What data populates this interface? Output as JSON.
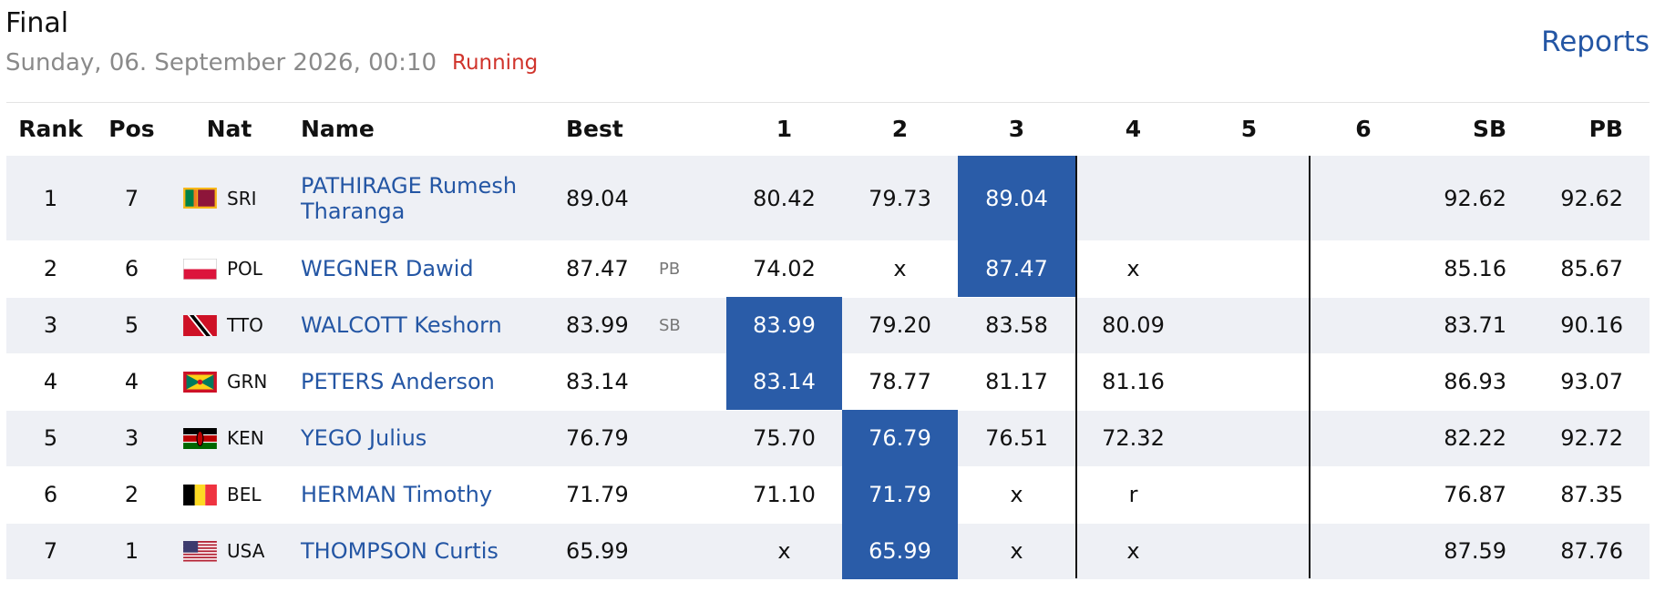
{
  "header": {
    "title": "Final",
    "subtitle": "Sunday, 06. September 2026, 00:10",
    "status": "Running",
    "link": "Reports"
  },
  "table": {
    "columns": [
      "Rank",
      "Pos",
      "Nat",
      "Name",
      "Best",
      "1",
      "2",
      "3",
      "4",
      "5",
      "6",
      "SB",
      "PB"
    ],
    "rows": [
      {
        "rank": "1",
        "pos": "7",
        "nat": "SRI",
        "name": "PATHIRAGE Rumesh Tharanga",
        "best": "89.04",
        "note": null,
        "attempts": [
          "80.42",
          "79.73",
          "89.04",
          null,
          null,
          null
        ],
        "sb": "92.62",
        "pb": "92.62"
      },
      {
        "rank": "2",
        "pos": "6",
        "nat": "POL",
        "name": "WEGNER Dawid",
        "best": "87.47",
        "note": "PB",
        "attempts": [
          "74.02",
          "x",
          "87.47",
          "x",
          null,
          null
        ],
        "sb": "85.16",
        "pb": "85.67"
      },
      {
        "rank": "3",
        "pos": "5",
        "nat": "TTO",
        "name": "WALCOTT Keshorn",
        "best": "83.99",
        "note": "SB",
        "attempts": [
          "83.99",
          "79.20",
          "83.58",
          "80.09",
          null,
          null
        ],
        "sb": "83.71",
        "pb": "90.16"
      },
      {
        "rank": "4",
        "pos": "4",
        "nat": "GRN",
        "name": "PETERS Anderson",
        "best": "83.14",
        "note": null,
        "attempts": [
          "83.14",
          "78.77",
          "81.17",
          "81.16",
          null,
          null
        ],
        "sb": "86.93",
        "pb": "93.07"
      },
      {
        "rank": "5",
        "pos": "3",
        "nat": "KEN",
        "name": "YEGO Julius",
        "best": "76.79",
        "note": null,
        "attempts": [
          "75.70",
          "76.79",
          "76.51",
          "72.32",
          null,
          null
        ],
        "sb": "82.22",
        "pb": "92.72"
      },
      {
        "rank": "6",
        "pos": "2",
        "nat": "BEL",
        "name": "HERMAN Timothy",
        "best": "71.79",
        "note": null,
        "attempts": [
          "71.10",
          "71.79",
          "x",
          "r",
          null,
          null
        ],
        "sb": "76.87",
        "pb": "87.35"
      },
      {
        "rank": "7",
        "pos": "1",
        "nat": "USA",
        "name": "THOMPSON Curtis",
        "best": "65.99",
        "note": null,
        "attempts": [
          "x",
          "65.99",
          "x",
          "x",
          null,
          null
        ],
        "sb": "87.59",
        "pb": "87.76"
      }
    ]
  }
}
